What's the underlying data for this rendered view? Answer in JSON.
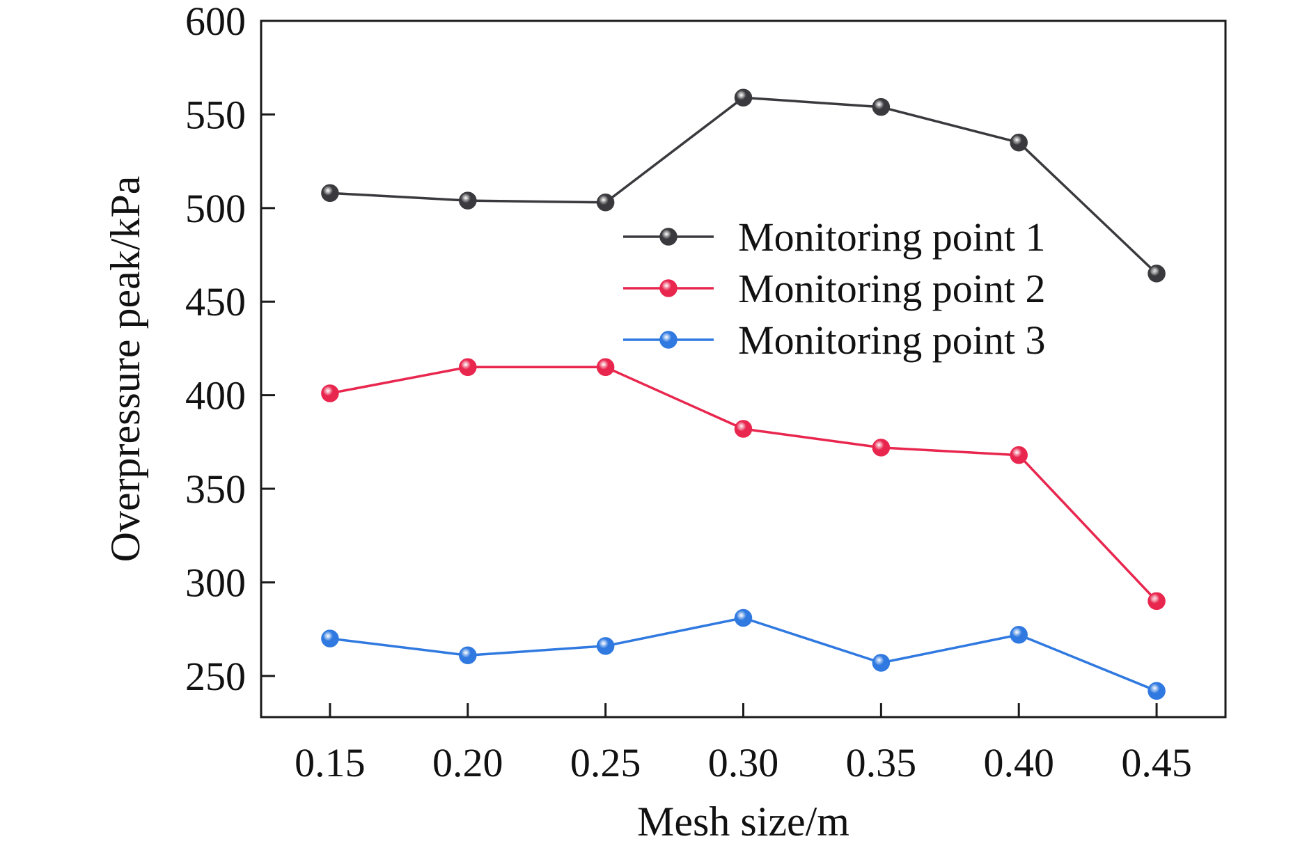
{
  "chart_data": {
    "type": "line",
    "title": "",
    "xlabel": "Mesh size/m",
    "ylabel": "Overpressure peak/kPa",
    "x": [
      0.15,
      0.2,
      0.25,
      0.3,
      0.35,
      0.4,
      0.45
    ],
    "x_tick_labels": [
      "0.15",
      "0.20",
      "0.25",
      "0.30",
      "0.35",
      "0.40",
      "0.45"
    ],
    "y_ticks": [
      250,
      300,
      350,
      400,
      450,
      500,
      550,
      600
    ],
    "y_tick_labels": [
      "250",
      "300",
      "350",
      "400",
      "450",
      "500",
      "550",
      "600"
    ],
    "xlim": [
      0.125,
      0.475
    ],
    "ylim": [
      228,
      600
    ],
    "grid": false,
    "legend_position": "upper-right",
    "series": [
      {
        "name": "Monitoring point 1",
        "color": "#3a3a3e",
        "values": [
          508,
          504,
          503,
          559,
          554,
          535,
          465
        ]
      },
      {
        "name": "Monitoring point 2",
        "color": "#e8264e",
        "values": [
          401,
          415,
          415,
          382,
          372,
          368,
          290
        ]
      },
      {
        "name": "Monitoring point 3",
        "color": "#2f79e0",
        "values": [
          270,
          261,
          266,
          281,
          257,
          272,
          242
        ]
      }
    ]
  }
}
